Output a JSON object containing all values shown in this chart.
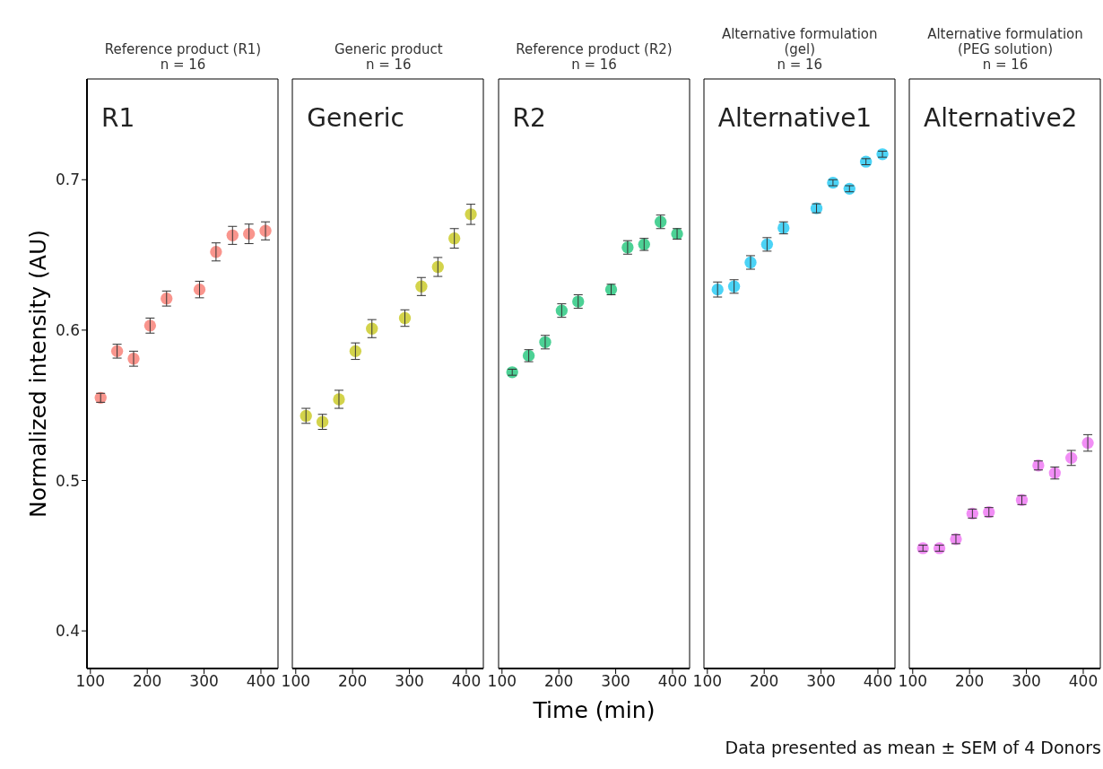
{
  "chart_data": [
    {
      "type": "scatter",
      "title": "Reference product (R1)",
      "subtitle": "n = 16",
      "ylabel": "Normalized intensity (AU)",
      "annotations": [
        "R1"
      ],
      "marker": "circle",
      "x": [
        118,
        147,
        176,
        205,
        234,
        292,
        321,
        350,
        379,
        408
      ],
      "xlim": [
        94,
        430
      ],
      "xticks": [
        100,
        200,
        300,
        400
      ],
      "ylim": [
        0.375,
        0.767
      ],
      "yticks": [
        0.4,
        0.5,
        0.6,
        0.7
      ],
      "series": [
        {
          "color": "#f87a70",
          "values": [
            0.555,
            0.586,
            0.581,
            0.603,
            0.621,
            0.627,
            0.652,
            0.663,
            0.664,
            0.666
          ],
          "errors": [
            0.003,
            0.0046,
            0.005,
            0.005,
            0.005,
            0.0055,
            0.006,
            0.006,
            0.0065,
            0.006
          ]
        }
      ]
    },
    {
      "type": "scatter",
      "title": "Generic product",
      "subtitle": "n = 16",
      "annotations": [
        "Generic"
      ],
      "marker": "circle",
      "tick_labels": "x",
      "x": [
        118,
        147,
        176,
        205,
        234,
        292,
        321,
        350,
        379,
        408
      ],
      "xlim": [
        94,
        430
      ],
      "xticks": [
        100,
        200,
        300,
        400
      ],
      "ylim": [
        0.375,
        0.767
      ],
      "yticks": [
        0.4,
        0.5,
        0.6,
        0.7
      ],
      "series": [
        {
          "color": "#c8c81e",
          "values": [
            0.543,
            0.539,
            0.554,
            0.586,
            0.601,
            0.608,
            0.629,
            0.642,
            0.661,
            0.677
          ],
          "errors": [
            0.005,
            0.005,
            0.006,
            0.0055,
            0.006,
            0.0055,
            0.006,
            0.0063,
            0.0065,
            0.0067
          ]
        }
      ]
    },
    {
      "type": "scatter",
      "title": "Reference product (R2)",
      "subtitle": "n = 16",
      "xlabel": "Time (min)",
      "annotations": [
        "R2"
      ],
      "marker": "circle",
      "tick_labels": "x",
      "x": [
        118,
        147,
        176,
        205,
        234,
        292,
        321,
        350,
        379,
        408
      ],
      "xlim": [
        94,
        430
      ],
      "xticks": [
        100,
        200,
        300,
        400
      ],
      "ylim": [
        0.375,
        0.767
      ],
      "yticks": [
        0.4,
        0.5,
        0.6,
        0.7
      ],
      "series": [
        {
          "color": "#1fc67a",
          "values": [
            0.572,
            0.583,
            0.592,
            0.613,
            0.619,
            0.627,
            0.655,
            0.657,
            0.672,
            0.664
          ],
          "errors": [
            0.002,
            0.004,
            0.0045,
            0.0045,
            0.0045,
            0.0035,
            0.0045,
            0.004,
            0.0045,
            0.0035
          ]
        }
      ]
    },
    {
      "type": "scatter",
      "title": "Alternative formulation (gel)",
      "subtitle": "n = 16",
      "annotations": [
        "Alternative1"
      ],
      "marker": "circle",
      "tick_labels": "x",
      "x": [
        118,
        147,
        176,
        205,
        234,
        292,
        321,
        350,
        379,
        408
      ],
      "xlim": [
        94,
        430
      ],
      "xticks": [
        100,
        200,
        300,
        400
      ],
      "ylim": [
        0.375,
        0.767
      ],
      "yticks": [
        0.4,
        0.5,
        0.6,
        0.7
      ],
      "series": [
        {
          "color": "#1ec8f4",
          "values": [
            0.627,
            0.629,
            0.645,
            0.657,
            0.668,
            0.681,
            0.698,
            0.694,
            0.712,
            0.717
          ],
          "errors": [
            0.005,
            0.0045,
            0.0045,
            0.0045,
            0.004,
            0.003,
            0.002,
            0.002,
            0.002,
            0.002
          ]
        }
      ]
    },
    {
      "type": "scatter",
      "title": "Alternative formulation (PEG solution)",
      "subtitle": "n = 16",
      "annotations": [
        "Alternative2",
        "Data presented as mean ± SEM of 4 Donors"
      ],
      "marker": "circle",
      "tick_labels": "x",
      "x": [
        118,
        147,
        176,
        205,
        234,
        292,
        321,
        350,
        379,
        408
      ],
      "xlim": [
        94,
        430
      ],
      "xticks": [
        100,
        200,
        300,
        400
      ],
      "ylim": [
        0.375,
        0.767
      ],
      "yticks": [
        0.4,
        0.5,
        0.6,
        0.7
      ],
      "series": [
        {
          "color": "#ee72f2",
          "values": [
            0.455,
            0.455,
            0.461,
            0.478,
            0.479,
            0.487,
            0.51,
            0.505,
            0.515,
            0.525
          ],
          "errors": [
            0.002,
            0.002,
            0.003,
            0.003,
            0.003,
            0.003,
            0.003,
            0.004,
            0.005,
            0.0055
          ]
        }
      ]
    }
  ]
}
